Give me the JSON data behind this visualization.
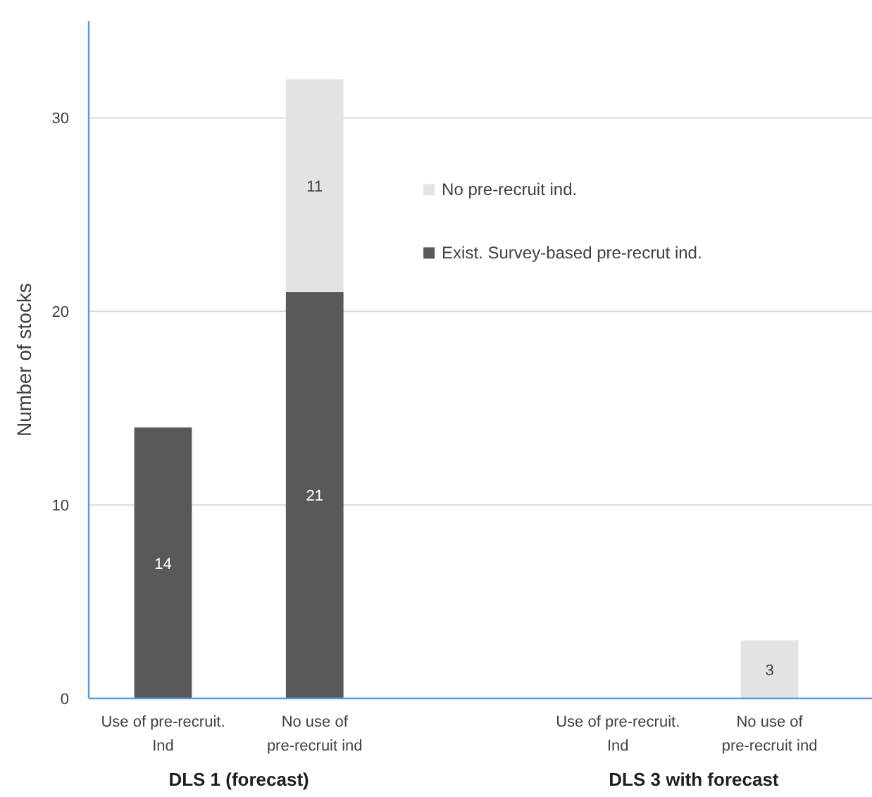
{
  "chart_data": {
    "type": "bar",
    "stacked": true,
    "ylabel": "Number of stocks",
    "categories": [
      "Use of pre-recruit. Ind",
      "No use of pre-recruit ind",
      null,
      "Use of pre-recruit. Ind",
      "No use of pre-recruit ind"
    ],
    "series": [
      {
        "name": "Exist. Survey-based pre-recrut ind.",
        "color": "#595959",
        "values": [
          14,
          21,
          null,
          null,
          null
        ]
      },
      {
        "name": "No pre-recruit ind.",
        "color": "#e3e3e3",
        "values": [
          null,
          11,
          null,
          null,
          3
        ]
      }
    ],
    "ylim": [
      0,
      35
    ],
    "yticks": [
      0,
      10,
      20,
      30
    ],
    "grid": "y",
    "legend": "top right",
    "data_labels": true,
    "annotations": [
      "DLS 1 (forecast)",
      "DLS 3 with forecast"
    ]
  }
}
